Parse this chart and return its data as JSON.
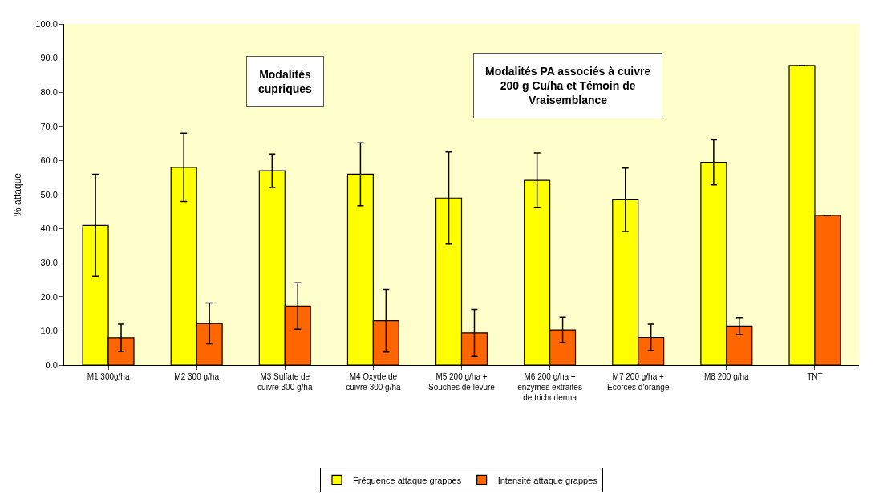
{
  "chart_data": {
    "type": "bar",
    "ylabel": "% attaque",
    "categories": [
      "M1 300g/ha",
      "M2 300 g/ha",
      "M3 Sulfate de cuivre 300 g/ha",
      "M4 Oxyde de cuivre 300 g/ha",
      "M5 200 g/ha + Souches de levure",
      "M6 200 g/ha + enzymes extraites de trichoderma",
      "M7 200 g/ha + Ecorces d'orange",
      "M8 200 g/ha",
      "TNT"
    ],
    "series": [
      {
        "name": "Fréquence attaque grappes",
        "color": "#ffff00",
        "values": [
          41,
          58,
          57,
          56,
          49,
          54.2,
          48.5,
          59.5,
          87.8
        ],
        "errors": [
          15,
          10,
          4.9,
          9.2,
          13.5,
          8,
          9.3,
          6.6,
          null
        ]
      },
      {
        "name": "Intensité attaque grappes",
        "color": "#ff6600",
        "values": [
          8,
          12.2,
          17.3,
          13,
          9.4,
          10.3,
          8.1,
          11.4,
          43.9
        ],
        "errors": [
          4,
          6,
          6.8,
          9.2,
          6.9,
          3.7,
          3.9,
          2.5,
          null
        ]
      }
    ],
    "ylim": [
      0,
      100
    ],
    "yticks": [
      {
        "value": 0,
        "label": "0.0"
      },
      {
        "value": 10,
        "label": "10.0"
      },
      {
        "value": 20,
        "label": "20.0"
      },
      {
        "value": 30,
        "label": "30.0"
      },
      {
        "value": 40,
        "label": "40.0"
      },
      {
        "value": 50,
        "label": "50.0"
      },
      {
        "value": 60,
        "label": "60.0"
      },
      {
        "value": 70,
        "label": "70.0"
      },
      {
        "value": 80,
        "label": "80.0"
      },
      {
        "value": 90,
        "label": "90.0"
      },
      {
        "value": 100,
        "label": "100.0"
      }
    ],
    "annotations": [
      "Modalités cupriques",
      "Modalités PA associés à cuivre 200 g Cu/ha et Témoin de Vraisemblance"
    ],
    "grid": false,
    "legend": "bottom"
  }
}
